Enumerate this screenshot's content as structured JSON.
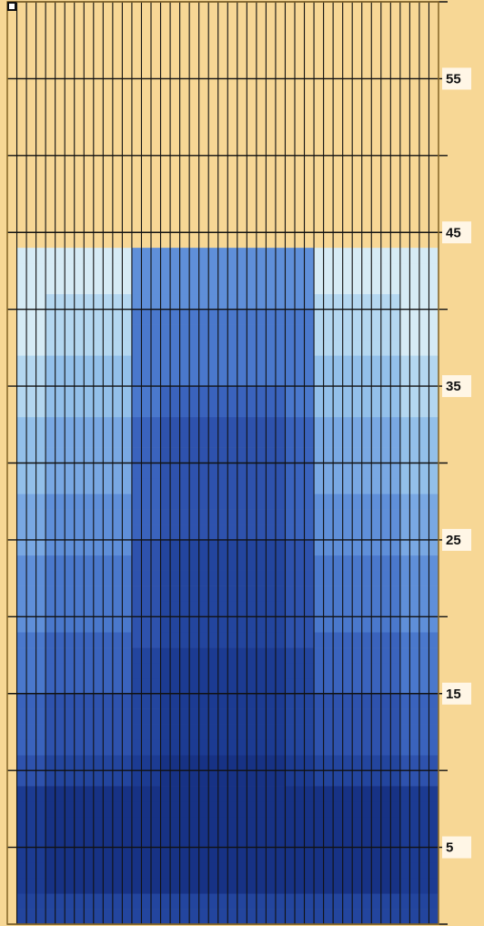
{
  "chart_data": {
    "type": "heatmap",
    "columns": 45,
    "rows": 60,
    "y_ticks": [
      "5",
      "15",
      "25",
      "35",
      "45",
      "55"
    ],
    "y_tick_values": [
      5,
      15,
      25,
      35,
      45,
      55
    ],
    "filled_rows": 44,
    "colors": {
      "background": "#f7d795",
      "grid": "#111111",
      "border": "#8a6a2a"
    },
    "color_scale": [
      "#f7d795",
      "#d6ebf5",
      "#b4d7f0",
      "#93c0ea",
      "#79a8e3",
      "#5f8fd9",
      "#4a78cc",
      "#3a63bd",
      "#2e52ad",
      "#23459e",
      "#1c3b92",
      "#173285"
    ]
  }
}
